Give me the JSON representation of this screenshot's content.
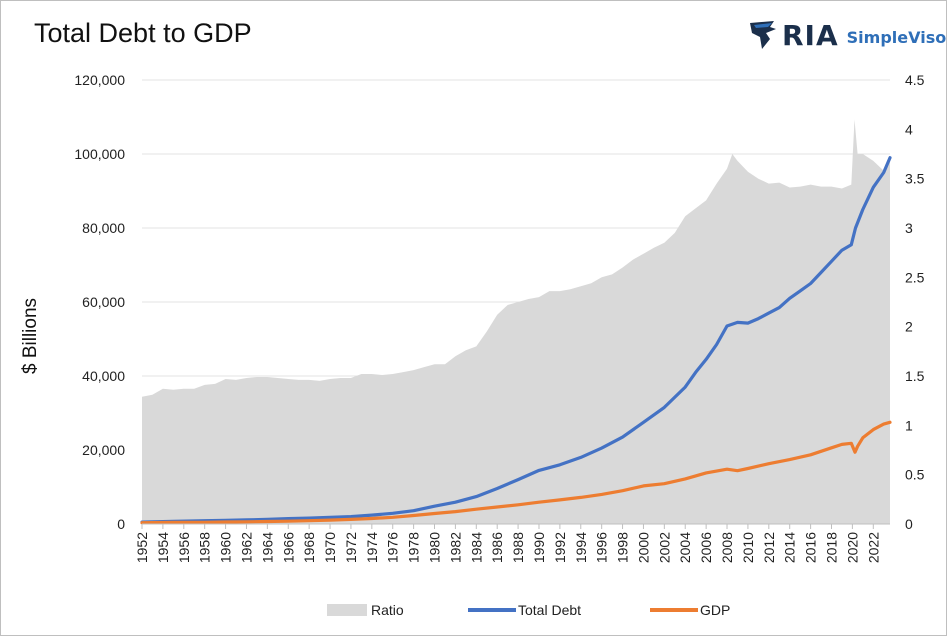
{
  "header": {
    "title": "Total Debt to GDP",
    "logo_main": "RIA",
    "logo_sub": "SimpleVisor"
  },
  "chart_data": {
    "type": "line",
    "title": "Total Debt to GDP",
    "ylabel": "$ Billions",
    "ylabel_right": "",
    "ylim": [
      0,
      120000
    ],
    "ylim_right": [
      0,
      4.5
    ],
    "xlim": [
      1952,
      2023.6
    ],
    "grid": true,
    "legend_position": "bottom",
    "yticks_left": [
      "120,000",
      "100,000",
      "80,000",
      "60,000",
      "40,000",
      "20,000",
      "0"
    ],
    "yticks_right": [
      "4.5",
      "4",
      "3.5",
      "3",
      "2.5",
      "2",
      "1.5",
      "1",
      "0.5",
      "0"
    ],
    "xticks": [
      "1952",
      "1954",
      "1956",
      "1958",
      "1960",
      "1962",
      "1964",
      "1966",
      "1968",
      "1970",
      "1972",
      "1974",
      "1976",
      "1978",
      "1980",
      "1982",
      "1984",
      "1986",
      "1988",
      "1990",
      "1992",
      "1994",
      "1996",
      "1998",
      "2000",
      "2002",
      "2004",
      "2006",
      "2008",
      "2010",
      "2012",
      "2014",
      "2016",
      "2018",
      "2020",
      "2022"
    ],
    "colors": {
      "Ratio": "#d9d9d9",
      "Total Debt": "#4472c4",
      "GDP": "#ed7d31"
    },
    "series": [
      {
        "name": "Ratio",
        "axis": "right",
        "style": "area",
        "x": [
          1952,
          1953,
          1954,
          1955,
          1956,
          1957,
          1958,
          1959,
          1960,
          1961,
          1962,
          1963,
          1964,
          1965,
          1966,
          1967,
          1968,
          1969,
          1970,
          1971,
          1972,
          1973,
          1974,
          1975,
          1976,
          1977,
          1978,
          1979,
          1980,
          1981,
          1982,
          1983,
          1984,
          1985,
          1986,
          1987,
          1988,
          1989,
          1990,
          1991,
          1992,
          1993,
          1994,
          1995,
          1996,
          1997,
          1998,
          1999,
          2000,
          2001,
          2002,
          2003,
          2004,
          2005,
          2006,
          2007,
          2008,
          2008.5,
          2009,
          2010,
          2011,
          2012,
          2013,
          2014,
          2015,
          2016,
          2017,
          2018,
          2019,
          2019.9,
          2020.2,
          2020.5,
          2021,
          2022,
          2023,
          2023.6
        ],
        "values": [
          1.29,
          1.31,
          1.37,
          1.36,
          1.37,
          1.37,
          1.41,
          1.42,
          1.47,
          1.46,
          1.48,
          1.49,
          1.49,
          1.48,
          1.47,
          1.46,
          1.46,
          1.45,
          1.47,
          1.48,
          1.48,
          1.52,
          1.52,
          1.51,
          1.52,
          1.54,
          1.56,
          1.59,
          1.62,
          1.62,
          1.7,
          1.76,
          1.8,
          1.95,
          2.12,
          2.22,
          2.25,
          2.28,
          2.3,
          2.36,
          2.36,
          2.38,
          2.41,
          2.44,
          2.5,
          2.53,
          2.6,
          2.68,
          2.74,
          2.8,
          2.85,
          2.95,
          3.12,
          3.2,
          3.28,
          3.45,
          3.6,
          3.75,
          3.68,
          3.57,
          3.5,
          3.45,
          3.46,
          3.41,
          3.42,
          3.44,
          3.42,
          3.42,
          3.4,
          3.44,
          4.1,
          3.75,
          3.75,
          3.68,
          3.58,
          3.67
        ]
      },
      {
        "name": "Total Debt",
        "axis": "left",
        "style": "line",
        "x": [
          1952,
          1955,
          1958,
          1960,
          1962,
          1964,
          1966,
          1968,
          1970,
          1972,
          1974,
          1976,
          1978,
          1980,
          1982,
          1984,
          1986,
          1988,
          1990,
          1992,
          1994,
          1996,
          1998,
          2000,
          2002,
          2004,
          2005,
          2006,
          2007,
          2008,
          2009,
          2010,
          2011,
          2012,
          2013,
          2014,
          2015,
          2016,
          2017,
          2018,
          2019,
          2019.9,
          2020.3,
          2021,
          2022,
          2023,
          2023.6
        ],
        "values": [
          500,
          700,
          900,
          1000,
          1100,
          1250,
          1450,
          1600,
          1800,
          2000,
          2400,
          2900,
          3600,
          4800,
          5900,
          7400,
          9600,
          12000,
          14500,
          16000,
          18000,
          20500,
          23500,
          27500,
          31500,
          37000,
          41000,
          44500,
          48500,
          53500,
          54500,
          54300,
          55500,
          57000,
          58500,
          61000,
          63000,
          65000,
          68000,
          71000,
          74000,
          75500,
          80000,
          85000,
          91000,
          95000,
          99000
        ]
      },
      {
        "name": "GDP",
        "axis": "left",
        "style": "line",
        "x": [
          1952,
          1955,
          1958,
          1960,
          1962,
          1964,
          1966,
          1968,
          1970,
          1972,
          1974,
          1976,
          1978,
          1980,
          1982,
          1984,
          1986,
          1988,
          1990,
          1992,
          1994,
          1996,
          1998,
          2000,
          2002,
          2004,
          2006,
          2008,
          2009,
          2010,
          2012,
          2014,
          2016,
          2018,
          2019,
          2019.9,
          2020.25,
          2020.5,
          2021,
          2022,
          2023,
          2023.6
        ],
        "values": [
          360,
          420,
          460,
          540,
          600,
          670,
          760,
          880,
          1050,
          1250,
          1500,
          1800,
          2300,
          2850,
          3350,
          4000,
          4600,
          5200,
          5900,
          6500,
          7200,
          8000,
          9000,
          10300,
          10900,
          12200,
          13800,
          14800,
          14400,
          15000,
          16300,
          17400,
          18700,
          20600,
          21500,
          21800,
          19400,
          21000,
          23300,
          25500,
          27000,
          27500
        ]
      }
    ]
  }
}
